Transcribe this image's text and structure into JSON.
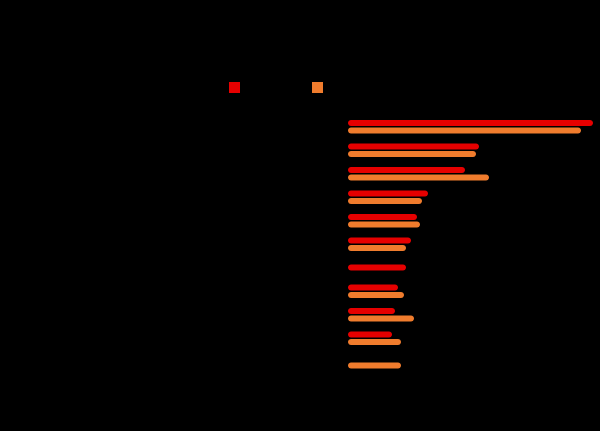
{
  "chart_data": {
    "type": "bar",
    "orientation": "horizontal",
    "categories": [
      "",
      "",
      "",
      "",
      "",
      "",
      "",
      "",
      "",
      "",
      ""
    ],
    "series": [
      {
        "color": "#e60000",
        "values": [
          245,
          131,
          117,
          80,
          69,
          63,
          58,
          50,
          47,
          44,
          null
        ]
      },
      {
        "color": "#f07c2d",
        "values": [
          233,
          128,
          141,
          74,
          72,
          58,
          null,
          56,
          66,
          53,
          53
        ]
      }
    ],
    "xlim": [
      0,
      250
    ],
    "grid": false,
    "legend": "top-center",
    "background": "#000000"
  }
}
